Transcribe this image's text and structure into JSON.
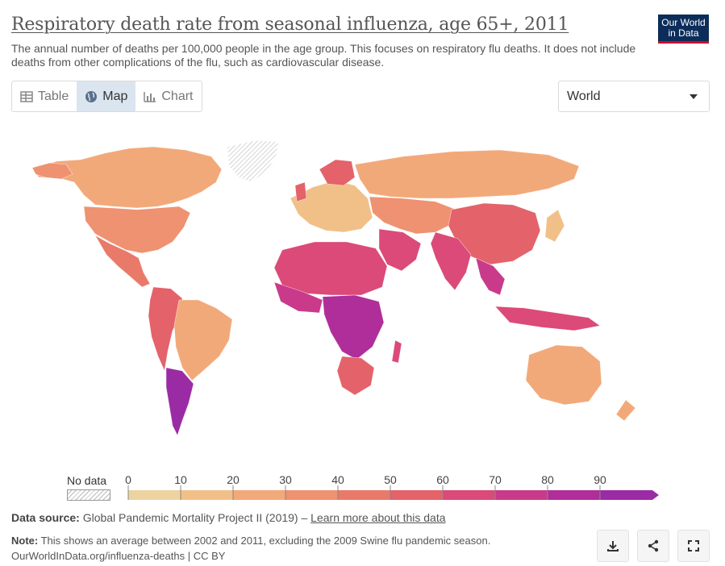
{
  "header": {
    "title": "Respiratory death rate from seasonal influenza, age 65+, 2011",
    "subtitle": "The annual number of deaths per 100,000 people in the age group. This focuses on respiratory flu deaths. It does not include deaths from other complications of the flu, such as cardiovascular disease.",
    "logo_line1": "Our World",
    "logo_line2": "in Data"
  },
  "tabs": [
    {
      "label": "Table",
      "icon": "table-icon"
    },
    {
      "label": "Map",
      "icon": "globe-icon"
    },
    {
      "label": "Chart",
      "icon": "chart-icon"
    }
  ],
  "region_selector": {
    "value": "World"
  },
  "legend": {
    "no_data_label": "No data",
    "ticks": [
      "0",
      "10",
      "20",
      "30",
      "40",
      "50",
      "60",
      "70",
      "80",
      "90"
    ],
    "colors": [
      "#edd3a0",
      "#f1c088",
      "#f2a97a",
      "#ee9271",
      "#e97a6a",
      "#e4626a",
      "#db4a78",
      "#c93a8a",
      "#b02e99",
      "#9b2ba4"
    ]
  },
  "footer": {
    "source_label": "Data source:",
    "source_text": "Global Pandemic Mortality Project II (2019) –",
    "source_link": "Learn more about this data",
    "note_label": "Note:",
    "note_text": "This shows an average between 2002 and 2011, excluding the 2009 Swine flu pandemic season.",
    "url": "OurWorldInData.org/influenza-deaths | CC BY"
  }
}
